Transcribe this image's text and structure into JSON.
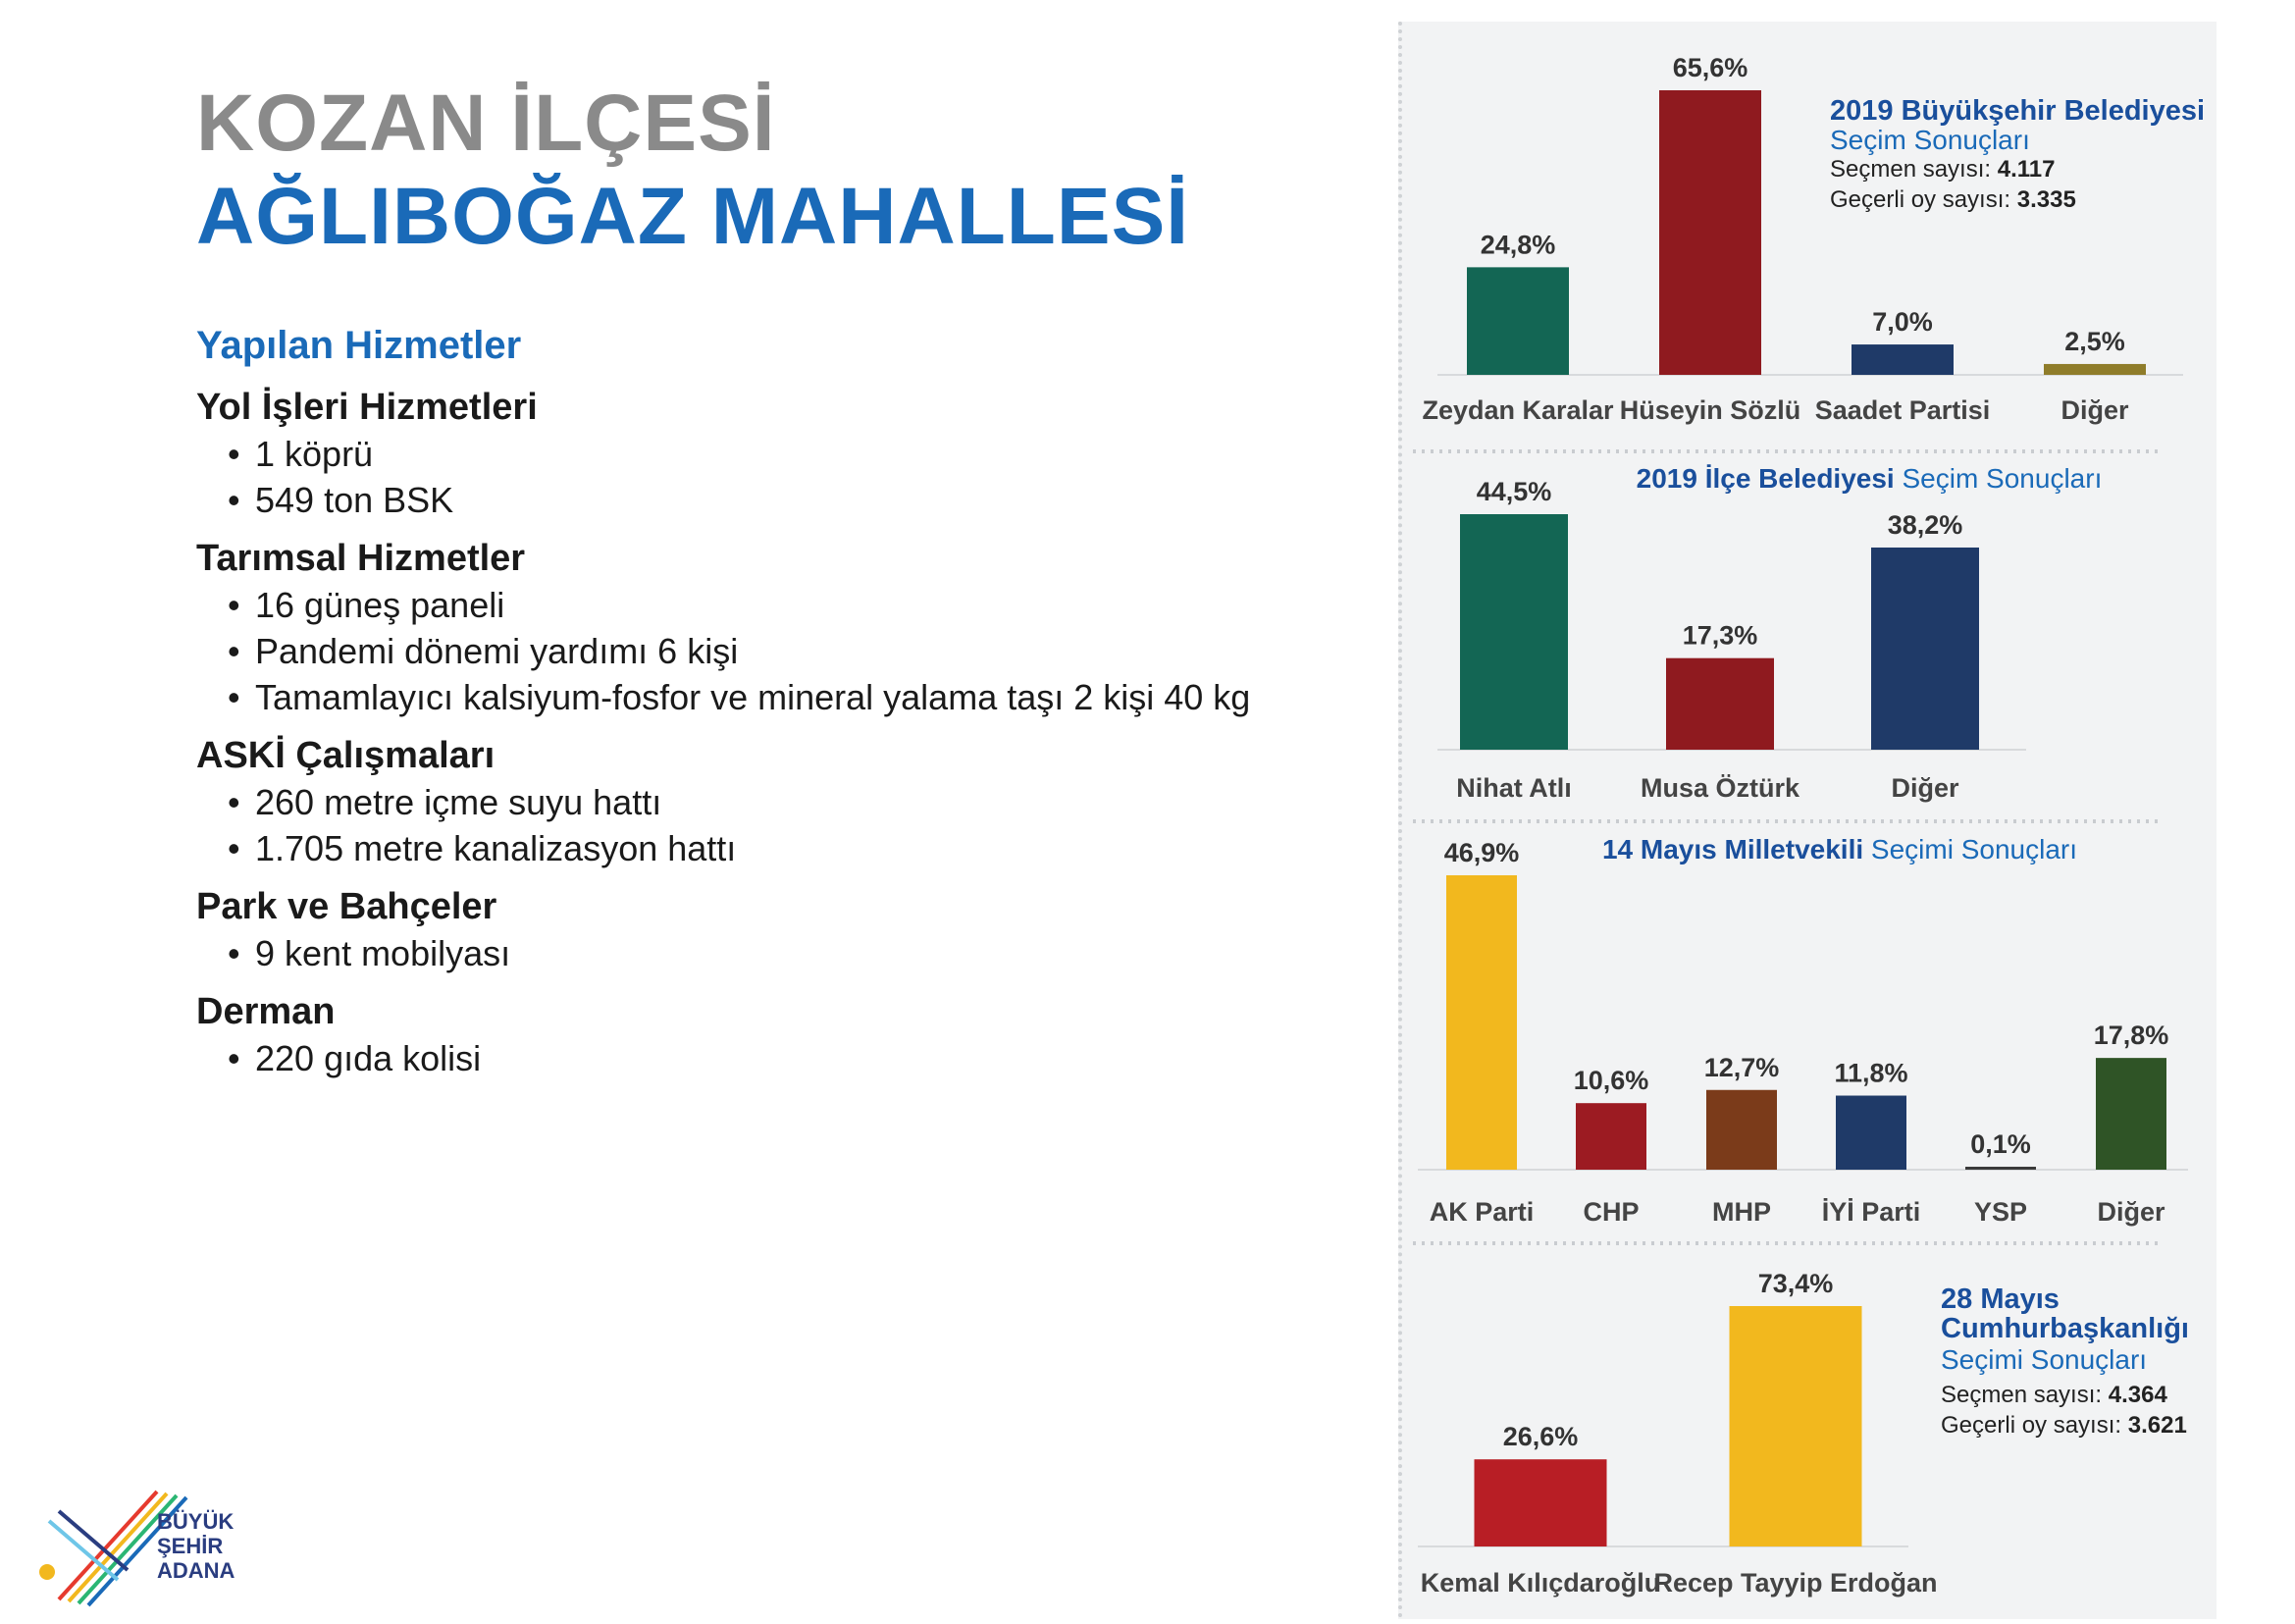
{
  "header": {
    "district": "KOZAN İLÇESİ",
    "neighborhood": "AĞLIBOĞAZ MAHALLESİ"
  },
  "services": {
    "heading": "Yapılan Hizmetler",
    "groups": [
      {
        "title": "Yol İşleri Hizmetleri",
        "items": [
          "1 köprü",
          "549 ton BSK"
        ]
      },
      {
        "title": "Tarımsal Hizmetler",
        "items": [
          "16 güneş paneli",
          "Pandemi dönemi yardımı 6 kişi",
          "Tamamlayıcı kalsiyum-fosfor ve mineral yalama taşı 2 kişi 40 kg"
        ]
      },
      {
        "title": "ASKİ Çalışmaları",
        "items": [
          "260 metre içme suyu hattı",
          "1.705 metre kanalizasyon hattı"
        ]
      },
      {
        "title": "Park ve Bahçeler",
        "items": [
          "9 kent mobilyası"
        ]
      },
      {
        "title": "Derman",
        "items": [
          "220 gıda kolisi"
        ]
      }
    ]
  },
  "logo": {
    "line1": "BÜYÜK",
    "line2": "ŞEHİR",
    "line3": "ADANA"
  },
  "chart_data": [
    {
      "type": "bar",
      "title_bold": "2019 Büyükşehir Belediyesi",
      "title_regular": "Seçim Sonuçları",
      "stats": [
        {
          "label": "Seçmen sayısı: ",
          "value": "4.117"
        },
        {
          "label": "Geçerli oy sayısı: ",
          "value": "3.335"
        }
      ],
      "categories": [
        "Zeydan Karalar",
        "Hüseyin Sözlü",
        "Saadet Partisi",
        "Diğer"
      ],
      "values": [
        24.8,
        65.6,
        7.0,
        2.5
      ],
      "value_labels": [
        "24,8%",
        "65,6%",
        "7,0%",
        "2,5%"
      ],
      "colors": [
        "#136654",
        "#8f1a1f",
        "#1f3a68",
        "#8f7c2a"
      ]
    },
    {
      "type": "bar",
      "title_bold": "2019 İlçe Belediyesi",
      "title_regular": "Seçim Sonuçları",
      "categories": [
        "Nihat Atlı",
        "Musa Öztürk",
        "Diğer"
      ],
      "values": [
        44.5,
        17.3,
        38.2
      ],
      "value_labels": [
        "44,5%",
        "17,3%",
        "38,2%"
      ],
      "colors": [
        "#136654",
        "#8f1a1f",
        "#1f3a68"
      ]
    },
    {
      "type": "bar",
      "title_bold": "14 Mayıs Milletvekili",
      "title_regular": "Seçimi Sonuçları",
      "categories": [
        "AK Parti",
        "CHP",
        "MHP",
        "İYİ Parti",
        "YSP",
        "Diğer"
      ],
      "values": [
        46.9,
        10.6,
        12.7,
        11.8,
        0.1,
        17.8
      ],
      "value_labels": [
        "46,9%",
        "10,6%",
        "12,7%",
        "11,8%",
        "0,1%",
        "17,8%"
      ],
      "colors": [
        "#f2b81e",
        "#9c1b22",
        "#7b3b1a",
        "#1f3a68",
        "#3a3a3a",
        "#2f5426"
      ]
    },
    {
      "type": "bar",
      "title_bold": "28 Mayıs Cumhurbaşkanlığı",
      "title_regular": "Seçimi Sonuçları",
      "stats": [
        {
          "label": "Seçmen sayısı: ",
          "value": "4.364"
        },
        {
          "label": "Geçerli oy sayısı: ",
          "value": "3.621"
        }
      ],
      "categories": [
        "Kemal Kılıçdaroğlu",
        "Recep Tayyip Erdoğan"
      ],
      "values": [
        26.6,
        73.4
      ],
      "value_labels": [
        "26,6%",
        "73,4%"
      ],
      "colors": [
        "#b81e25",
        "#f2b81e"
      ]
    }
  ]
}
